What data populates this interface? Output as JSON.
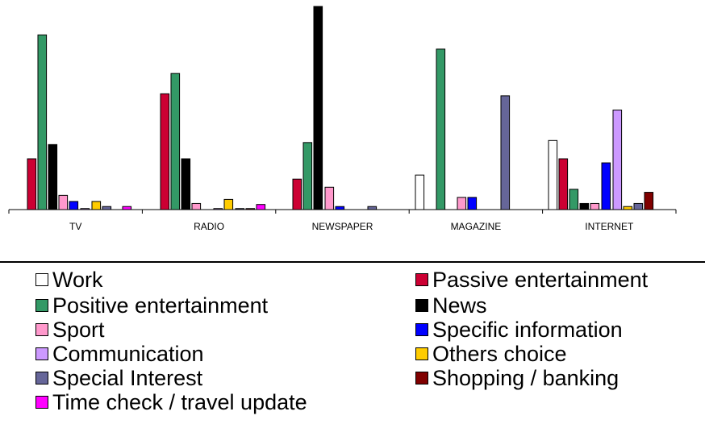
{
  "chart_data": {
    "type": "bar",
    "title": "",
    "xlabel": "",
    "ylabel": "",
    "ylim": [
      0,
      100
    ],
    "grid": false,
    "legend_position": "bottom",
    "categories": [
      "TV",
      "RADIO",
      "NEWSPAPER",
      "MAGAZINE",
      "INTERNET"
    ],
    "series": [
      {
        "name": "Work",
        "color": "#ffffff",
        "values": [
          0,
          0,
          0,
          17,
          34
        ]
      },
      {
        "name": "Passive entertainment",
        "color": "#cc0033",
        "values": [
          25,
          57,
          15,
          0,
          25
        ]
      },
      {
        "name": "Positive entertainment",
        "color": "#339966",
        "values": [
          86,
          67,
          33,
          79,
          10
        ]
      },
      {
        "name": "News",
        "color": "#000000",
        "values": [
          32,
          25,
          100,
          0,
          3
        ]
      },
      {
        "name": "Sport",
        "color": "#ff99cc",
        "values": [
          7,
          3,
          11,
          6,
          3
        ]
      },
      {
        "name": "Specific information",
        "color": "#0000ff",
        "values": [
          4,
          0,
          1.5,
          6,
          23
        ]
      },
      {
        "name": "Communication",
        "color": "#cc99ff",
        "values": [
          0.5,
          0.5,
          0,
          0,
          49
        ]
      },
      {
        "name": "Others choice",
        "color": "#ffcc00",
        "values": [
          4,
          5,
          0,
          0,
          1.5
        ]
      },
      {
        "name": "Special Interest",
        "color": "#666699",
        "values": [
          1.5,
          0.5,
          1.5,
          56,
          3
        ]
      },
      {
        "name": "Shopping / banking",
        "color": "#800000",
        "values": [
          0,
          0.5,
          0,
          0,
          8.5
        ]
      },
      {
        "name": "Time check / travel update",
        "color": "#ff00ff",
        "values": [
          1.5,
          2.5,
          0,
          0,
          0
        ]
      }
    ]
  }
}
